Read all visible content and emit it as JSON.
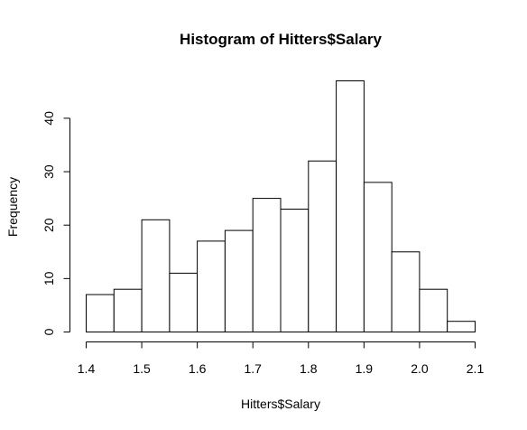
{
  "chart_data": {
    "type": "bar",
    "title": "Histogram of Hitters$Salary",
    "xlabel": "Hitters$Salary",
    "ylabel": "Frequency",
    "bin_edges": [
      1.4,
      1.45,
      1.5,
      1.55,
      1.6,
      1.65,
      1.7,
      1.75,
      1.8,
      1.85,
      1.9,
      1.95,
      2.0,
      2.05,
      2.1
    ],
    "values": [
      7,
      8,
      21,
      11,
      17,
      19,
      25,
      23,
      32,
      47,
      28,
      15,
      8,
      2
    ],
    "xlim": [
      1.4,
      2.1
    ],
    "ylim": [
      0,
      47
    ],
    "x_ticks": [
      "1.4",
      "1.5",
      "1.6",
      "1.7",
      "1.8",
      "1.9",
      "2.0",
      "2.1"
    ],
    "y_ticks": [
      "0",
      "10",
      "20",
      "30",
      "40"
    ],
    "grid": false,
    "bar_fill": "#ffffff",
    "bar_stroke": "#000000"
  }
}
